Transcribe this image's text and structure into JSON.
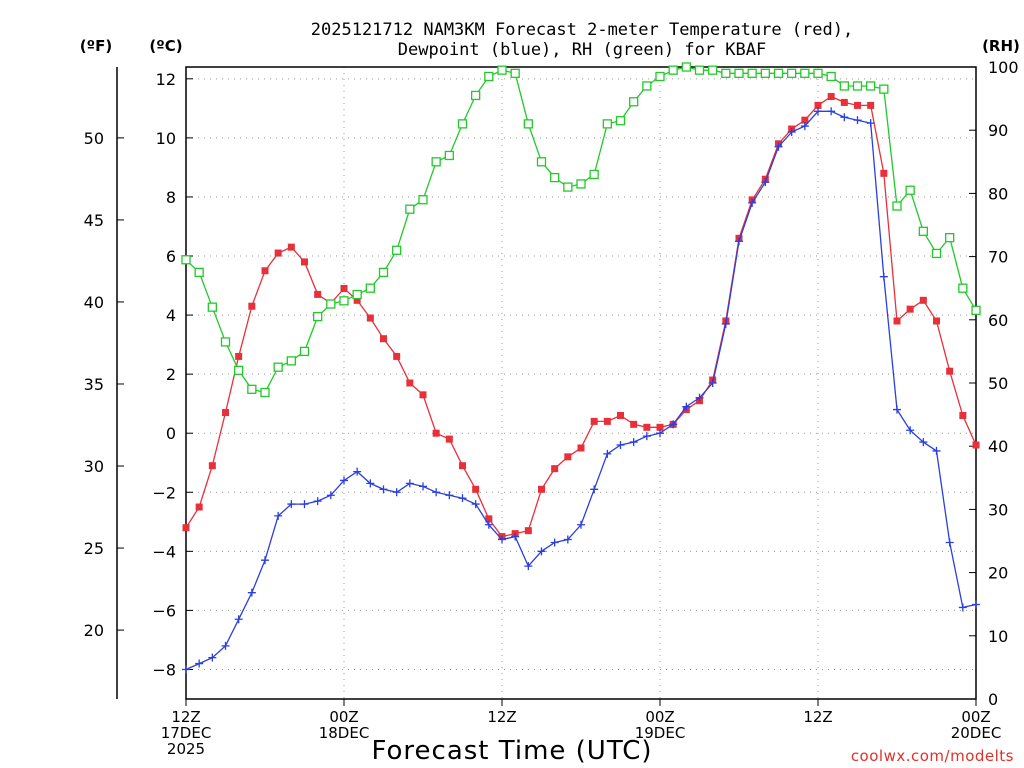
{
  "chart_data": {
    "type": "line",
    "title_line1": "2025121712 NAM3KM Forecast 2-meter Temperature (red),",
    "title_line2": "Dewpoint (blue), RH (green) for KBAF",
    "xlabel": "Forecast Time (UTC)",
    "credit": "coolwx.com/modelts",
    "units": {
      "fahrenheit": "(ºF)",
      "celsius": "(ºC)",
      "rh": "(RH)"
    },
    "x_ticks": [
      {
        "hour": 0,
        "line1": "12Z",
        "line2": "17DEC",
        "line3": "2025"
      },
      {
        "hour": 12,
        "line1": "00Z",
        "line2": "18DEC",
        "line3": ""
      },
      {
        "hour": 24,
        "line1": "12Z",
        "line2": "",
        "line3": ""
      },
      {
        "hour": 36,
        "line1": "00Z",
        "line2": "19DEC",
        "line3": ""
      },
      {
        "hour": 48,
        "line1": "12Z",
        "line2": "",
        "line3": ""
      },
      {
        "hour": 60,
        "line1": "00Z",
        "line2": "20DEC",
        "line3": ""
      }
    ],
    "xlim": [
      0,
      60
    ],
    "ylim_celsius": [
      -9.0,
      12.4
    ],
    "ylim_rh": [
      0,
      100
    ],
    "celsius_ticks": [
      12,
      10,
      8,
      6,
      4,
      2,
      0,
      -2,
      -4,
      -6,
      -8
    ],
    "fahrenheit_ticks": [
      50,
      45,
      40,
      35,
      30,
      25,
      20
    ],
    "rh_ticks": [
      100,
      90,
      80,
      70,
      60,
      50,
      40,
      30,
      20,
      10,
      0
    ],
    "series": [
      {
        "name": "2-meter Temperature",
        "color": "#e8303a",
        "marker": "square-filled",
        "axis": "celsius",
        "hours": [
          0,
          1,
          2,
          3,
          4,
          5,
          6,
          7,
          8,
          9,
          10,
          11,
          12,
          13,
          14,
          15,
          16,
          17,
          18,
          19,
          20,
          21,
          22,
          23,
          24,
          25,
          26,
          27,
          28,
          29,
          30,
          31,
          32,
          33,
          34,
          35,
          36,
          37,
          38,
          39,
          40,
          41,
          42,
          43,
          44,
          45,
          46,
          47,
          48,
          49,
          50,
          51,
          52,
          53,
          54,
          55,
          56,
          57,
          58,
          59,
          60
        ],
        "values": [
          -3.2,
          -2.5,
          -1.1,
          0.7,
          2.6,
          4.3,
          5.5,
          6.1,
          6.3,
          5.8,
          4.7,
          4.4,
          4.9,
          4.5,
          3.9,
          3.2,
          2.6,
          1.7,
          1.3,
          0.0,
          -0.2,
          -1.1,
          -1.9,
          -2.9,
          -3.5,
          -3.4,
          -3.3,
          -1.9,
          -1.2,
          -0.8,
          -0.5,
          0.4,
          0.4,
          0.6,
          0.3,
          0.2,
          0.2,
          0.3,
          0.8,
          1.1,
          1.8,
          3.8,
          6.6,
          7.9,
          8.6,
          9.8,
          10.3,
          10.6,
          11.1,
          11.4,
          11.2,
          11.1,
          11.1,
          8.8,
          3.8,
          4.2,
          4.5,
          3.8,
          2.1,
          0.6,
          -0.4
        ]
      },
      {
        "name": "Dewpoint",
        "color": "#2a3fe0",
        "marker": "plus",
        "axis": "celsius",
        "hours": [
          0,
          1,
          2,
          3,
          4,
          5,
          6,
          7,
          8,
          9,
          10,
          11,
          12,
          13,
          14,
          15,
          16,
          17,
          18,
          19,
          20,
          21,
          22,
          23,
          24,
          25,
          26,
          27,
          28,
          29,
          30,
          31,
          32,
          33,
          34,
          35,
          36,
          37,
          38,
          39,
          40,
          41,
          42,
          43,
          44,
          45,
          46,
          47,
          48,
          49,
          50,
          51,
          52,
          53,
          54,
          55,
          56,
          57,
          58,
          59,
          60
        ],
        "values": [
          -8.0,
          -7.8,
          -7.6,
          -7.2,
          -6.3,
          -5.4,
          -4.3,
          -2.8,
          -2.4,
          -2.4,
          -2.3,
          -2.1,
          -1.6,
          -1.3,
          -1.7,
          -1.9,
          -2.0,
          -1.7,
          -1.8,
          -2.0,
          -2.1,
          -2.2,
          -2.4,
          -3.1,
          -3.6,
          -3.5,
          -4.5,
          -4.0,
          -3.7,
          -3.6,
          -3.1,
          -1.9,
          -0.7,
          -0.4,
          -0.3,
          -0.1,
          0.0,
          0.3,
          0.9,
          1.2,
          1.7,
          3.7,
          6.5,
          7.8,
          8.5,
          9.7,
          10.2,
          10.4,
          10.9,
          10.9,
          10.7,
          10.6,
          10.5,
          5.3,
          0.8,
          0.1,
          -0.3,
          -0.6,
          -3.7,
          -5.9,
          -5.8
        ]
      },
      {
        "name": "RH",
        "color": "#22c92a",
        "marker": "square-open",
        "axis": "rh",
        "hours": [
          0,
          1,
          2,
          3,
          4,
          5,
          6,
          7,
          8,
          9,
          10,
          11,
          12,
          13,
          14,
          15,
          16,
          17,
          18,
          19,
          20,
          21,
          22,
          23,
          24,
          25,
          26,
          27,
          28,
          29,
          30,
          31,
          32,
          33,
          34,
          35,
          36,
          37,
          38,
          39,
          40,
          41,
          42,
          43,
          44,
          45,
          46,
          47,
          48,
          49,
          50,
          51,
          52,
          53,
          54,
          55,
          56,
          57,
          58,
          59,
          60
        ],
        "values": [
          69.5,
          67.5,
          62,
          56.5,
          52,
          49,
          48.5,
          52.5,
          53.5,
          55,
          60.5,
          62.5,
          63,
          64,
          65,
          67.5,
          71,
          77.5,
          79,
          85,
          86,
          91,
          95.5,
          98.5,
          99.5,
          99,
          91,
          85,
          82.5,
          81,
          81.5,
          83,
          91,
          91.5,
          94.5,
          97,
          98.5,
          99.5,
          100,
          99.5,
          99.5,
          99,
          99,
          99,
          99,
          99,
          99,
          99,
          99,
          98.5,
          97,
          97,
          97,
          96.5,
          78,
          80.5,
          74,
          70.5,
          73,
          65,
          61.5
        ]
      }
    ]
  }
}
